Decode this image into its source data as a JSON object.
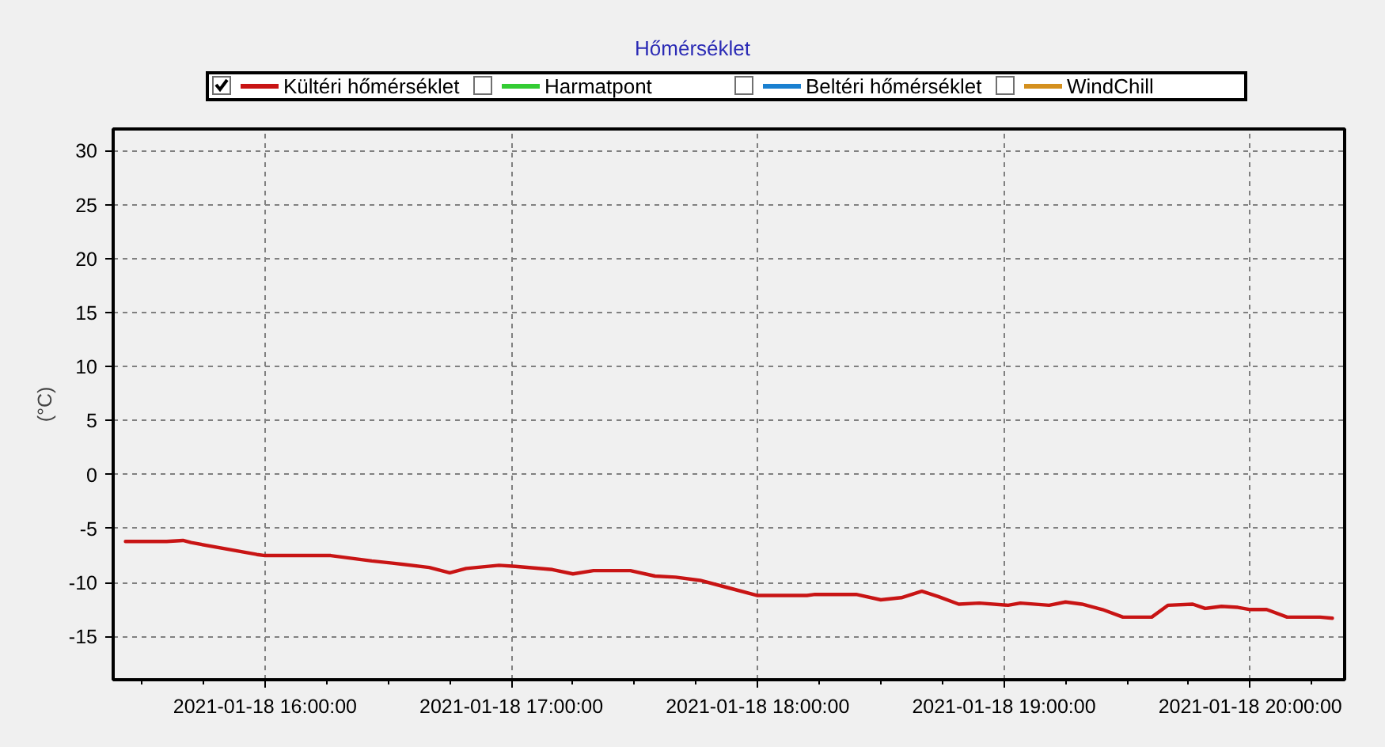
{
  "chart_data": {
    "type": "line",
    "title": "Hőmérséklet",
    "ylabel": "(°C)",
    "x": [
      "2021-01-18T15:26",
      "2021-01-18T15:36",
      "2021-01-18T15:40",
      "2021-01-18T15:42",
      "2021-01-18T15:58",
      "2021-01-18T16:00",
      "2021-01-18T16:16",
      "2021-01-18T16:26",
      "2021-01-18T16:31",
      "2021-01-18T16:40",
      "2021-01-18T16:45",
      "2021-01-18T16:49",
      "2021-01-18T16:57",
      "2021-01-18T17:01",
      "2021-01-18T17:10",
      "2021-01-18T17:15",
      "2021-01-18T17:20",
      "2021-01-18T17:29",
      "2021-01-18T17:35",
      "2021-01-18T17:40",
      "2021-01-18T17:46",
      "2021-01-18T17:53",
      "2021-01-18T18:00",
      "2021-01-18T18:12",
      "2021-01-18T18:14",
      "2021-01-18T18:24",
      "2021-01-18T18:30",
      "2021-01-18T18:35",
      "2021-01-18T18:40",
      "2021-01-18T18:44",
      "2021-01-18T18:49",
      "2021-01-18T18:54",
      "2021-01-18T19:01",
      "2021-01-18T19:04",
      "2021-01-18T19:11",
      "2021-01-18T19:15",
      "2021-01-18T19:19",
      "2021-01-18T19:24",
      "2021-01-18T19:29",
      "2021-01-18T19:36",
      "2021-01-18T19:40",
      "2021-01-18T19:46",
      "2021-01-18T19:49",
      "2021-01-18T19:53",
      "2021-01-18T19:57",
      "2021-01-18T20:00",
      "2021-01-18T20:04",
      "2021-01-18T20:09",
      "2021-01-18T20:17",
      "2021-01-18T20:20"
    ],
    "series": [
      {
        "name": "Kültéri hőmérséklet",
        "color": "#c81414",
        "values": [
          -6.2,
          -6.2,
          -6.1,
          -6.3,
          -7.4,
          -7.5,
          -7.5,
          -8.0,
          -8.2,
          -8.6,
          -9.1,
          -8.7,
          -8.4,
          -8.5,
          -8.8,
          -9.2,
          -8.9,
          -8.9,
          -9.4,
          -9.5,
          -9.8,
          -10.5,
          -11.2,
          -11.2,
          -11.1,
          -11.1,
          -11.6,
          -11.4,
          -10.8,
          -11.3,
          -12.0,
          -11.9,
          -12.1,
          -11.9,
          -12.1,
          -11.8,
          -12.0,
          -12.5,
          -13.2,
          -13.2,
          -12.1,
          -12.0,
          -12.4,
          -12.2,
          -12.3,
          -12.5,
          -12.5,
          -13.2,
          -13.2,
          -13.3
        ]
      },
      {
        "name": "Harmatpont",
        "color": "#33cc33",
        "values": [
          null,
          null,
          null,
          null,
          null,
          null,
          null,
          null,
          null,
          null,
          null,
          null,
          null,
          null,
          null,
          null,
          null,
          null,
          null,
          null,
          null,
          null,
          null,
          null,
          null,
          null,
          null,
          null,
          null,
          null,
          null,
          null,
          null,
          null,
          null,
          null,
          null,
          null,
          null,
          null,
          null,
          null,
          null,
          null,
          null,
          null,
          null,
          null,
          null,
          null
        ]
      },
      {
        "name": "Beltéri hőmérséklet",
        "color": "#1a80d0",
        "values": [
          null,
          null,
          null,
          null,
          null,
          null,
          null,
          null,
          null,
          null,
          null,
          null,
          null,
          null,
          null,
          null,
          null,
          null,
          null,
          null,
          null,
          null,
          null,
          null,
          null,
          null,
          null,
          null,
          null,
          null,
          null,
          null,
          null,
          null,
          null,
          null,
          null,
          null,
          null,
          null,
          null,
          null,
          null,
          null,
          null,
          null,
          null,
          null,
          null,
          null
        ]
      },
      {
        "name": "WindChill",
        "color": "#d4901e",
        "values": [
          null,
          null,
          null,
          null,
          null,
          null,
          null,
          null,
          null,
          null,
          null,
          null,
          null,
          null,
          null,
          null,
          null,
          null,
          null,
          null,
          null,
          null,
          null,
          null,
          null,
          null,
          null,
          null,
          null,
          null,
          null,
          null,
          null,
          null,
          null,
          null,
          null,
          null,
          null,
          null,
          null,
          null,
          null,
          null,
          null,
          null,
          null,
          null,
          null,
          null
        ]
      }
    ],
    "xlim": [
      "2021-01-18T15:23",
      "2021-01-18T20:23"
    ],
    "xticks": [
      {
        "value": "2021-01-18T15:30",
        "label": null
      },
      {
        "value": "2021-01-18T15:45",
        "label": null
      },
      {
        "value": "2021-01-18T16:00",
        "label": "2021-01-18 16:00:00"
      },
      {
        "value": "2021-01-18T16:15",
        "label": null
      },
      {
        "value": "2021-01-18T16:30",
        "label": null
      },
      {
        "value": "2021-01-18T16:45",
        "label": null
      },
      {
        "value": "2021-01-18T17:00",
        "label": "2021-01-18 17:00:00"
      },
      {
        "value": "2021-01-18T17:15",
        "label": null
      },
      {
        "value": "2021-01-18T17:30",
        "label": null
      },
      {
        "value": "2021-01-18T17:45",
        "label": null
      },
      {
        "value": "2021-01-18T18:00",
        "label": "2021-01-18 18:00:00"
      },
      {
        "value": "2021-01-18T18:15",
        "label": null
      },
      {
        "value": "2021-01-18T18:30",
        "label": null
      },
      {
        "value": "2021-01-18T18:45",
        "label": null
      },
      {
        "value": "2021-01-18T19:00",
        "label": "2021-01-18 19:00:00"
      },
      {
        "value": "2021-01-18T19:15",
        "label": null
      },
      {
        "value": "2021-01-18T19:30",
        "label": null
      },
      {
        "value": "2021-01-18T19:45",
        "label": null
      },
      {
        "value": "2021-01-18T20:00",
        "label": "2021-01-18 20:00:00"
      },
      {
        "value": "2021-01-18T20:15",
        "label": null
      }
    ],
    "ylim": [
      -19,
      32
    ],
    "yticks": [
      -15,
      -10,
      -5,
      0,
      5,
      10,
      15,
      20,
      25,
      30
    ],
    "grid": true,
    "legend": "top",
    "marker": "none",
    "line_style": "solid"
  }
}
